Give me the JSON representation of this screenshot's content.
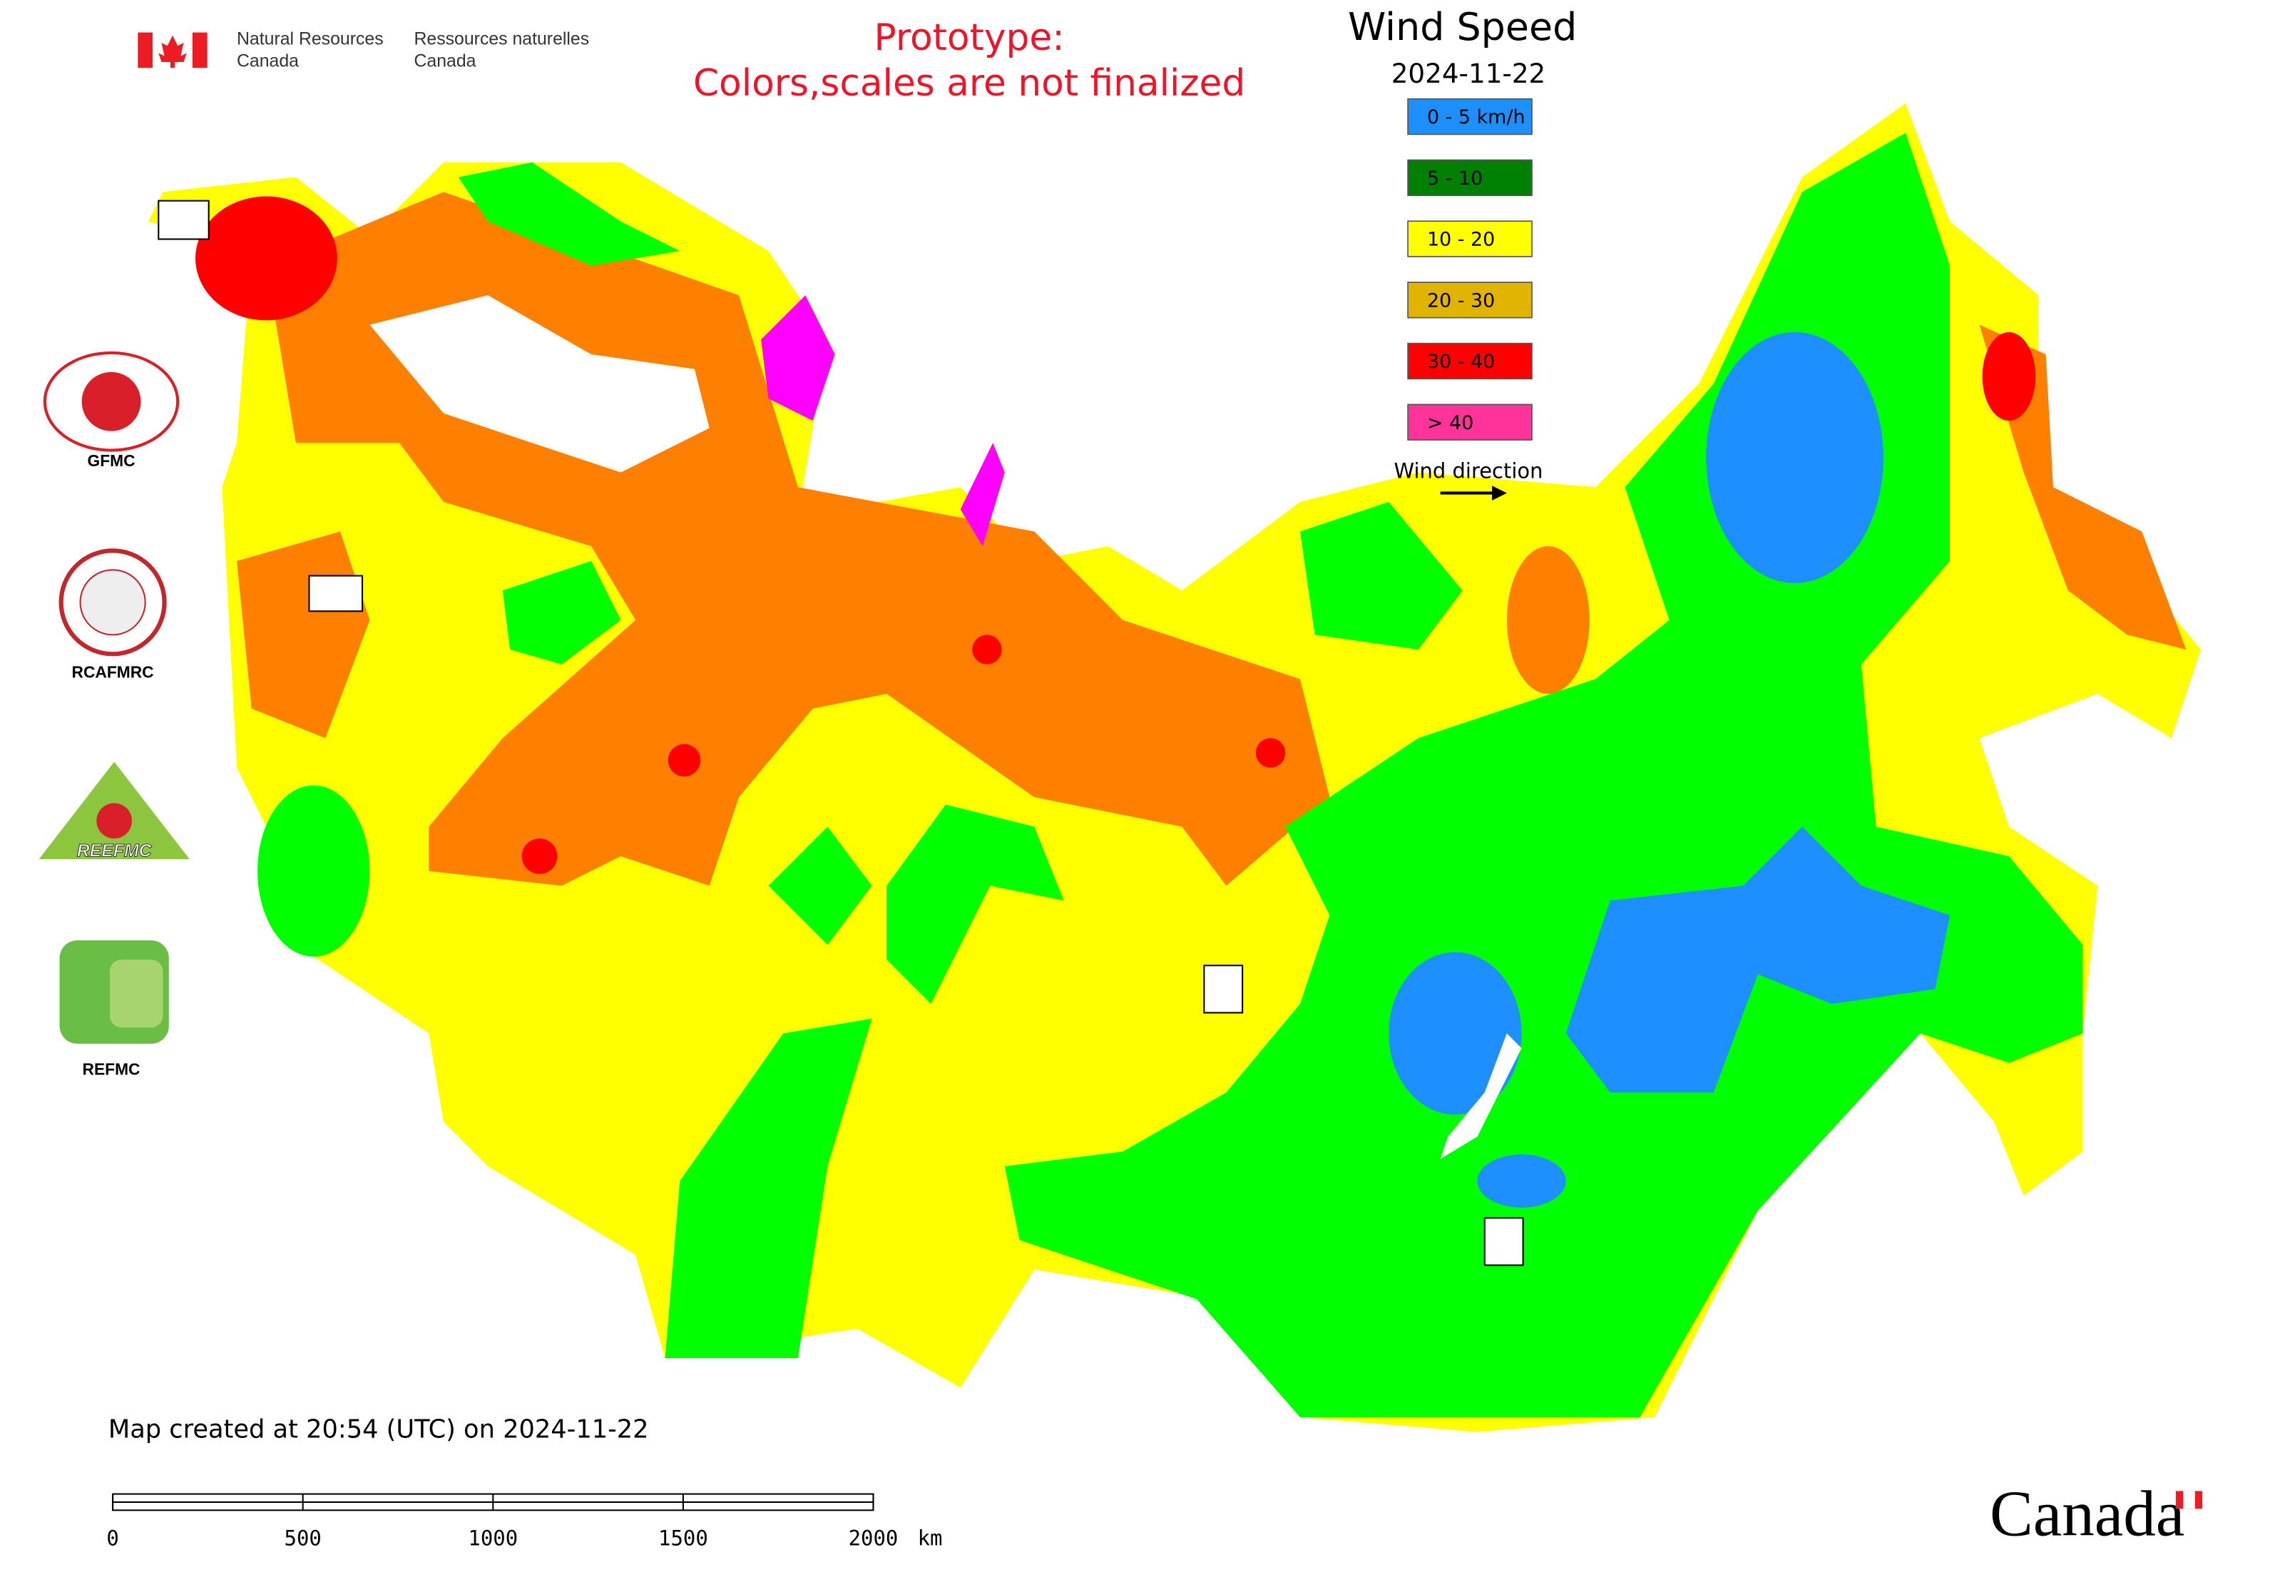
{
  "header": {
    "agency_en": [
      "Natural Resources",
      "Canada"
    ],
    "agency_fr": [
      "Ressources naturelles",
      "Canada"
    ]
  },
  "notice": [
    "Prototype:",
    "Colors,scales are not finalized"
  ],
  "title": "Wind Speed",
  "date": "2024-11-22",
  "legend": [
    {
      "label": "0 - 5 km/h",
      "color": "#1e8fff"
    },
    {
      "label": "5 - 10",
      "color": "#008000"
    },
    {
      "label": "10 - 20",
      "color": "#ffff00"
    },
    {
      "label": "20 - 30",
      "color": "#e0b400"
    },
    {
      "label": "30 - 40",
      "color": "#ff0000"
    },
    {
      "label": "> 40",
      "color": "#ff3399"
    }
  ],
  "wind_direction": "Wind direction",
  "logos": [
    "GFMC",
    "RCAFMRC",
    "REEFMC",
    "REFMC"
  ],
  "footer": "Map created at 20:54 (UTC) on 2024-11-22",
  "scale_bar": {
    "ticks": [
      0,
      500,
      1000,
      1500,
      2000
    ],
    "unit": "km"
  },
  "wordmark": "Canada"
}
